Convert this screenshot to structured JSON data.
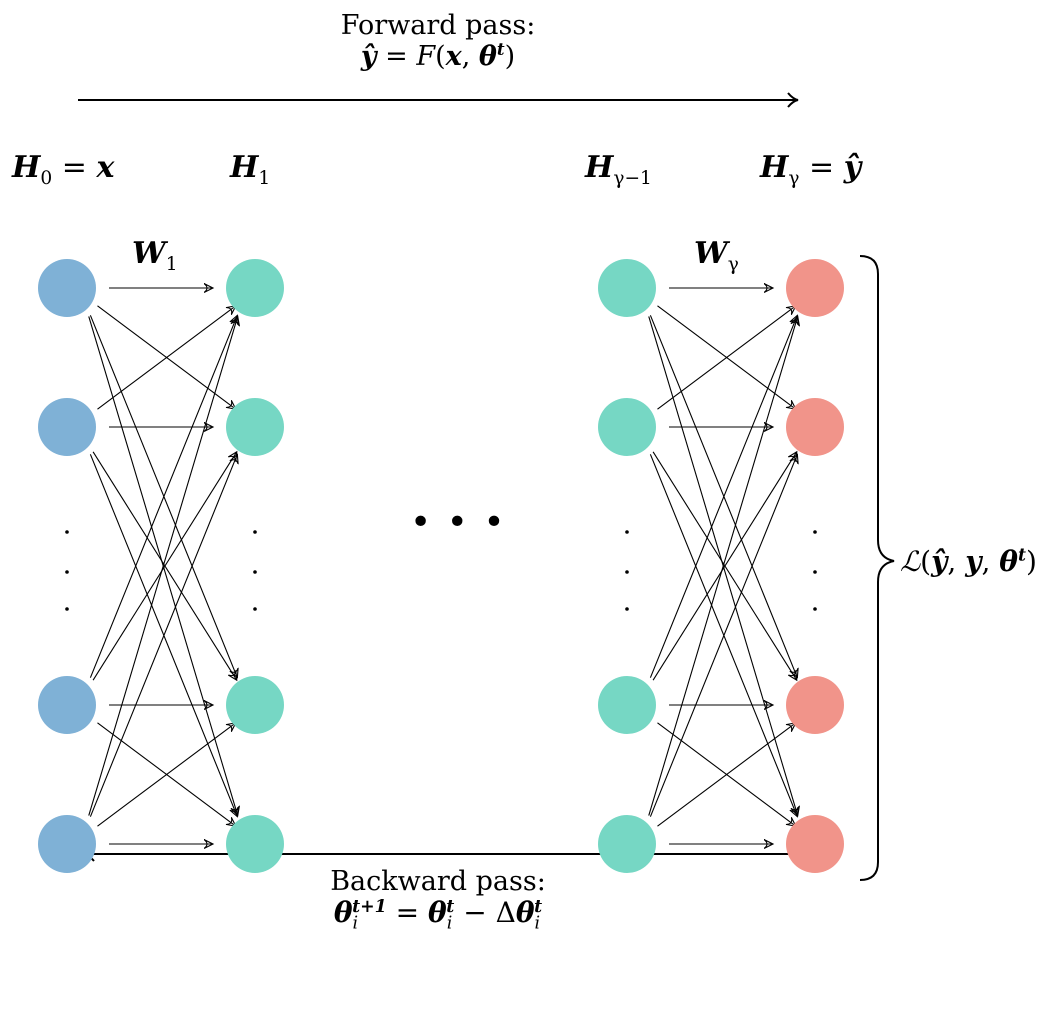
{
  "forward": {
    "title": "Forward pass:",
    "formula": {
      "yhat": "ŷ",
      "eq": "=",
      "func": "F",
      "x": "x",
      "theta": "θ",
      "t": "t"
    }
  },
  "backward": {
    "title": "Backward pass:",
    "formula": {
      "theta": "θ",
      "i": "i",
      "t1": "t+1",
      "t": "t",
      "eq": "=",
      "minus": "−",
      "delta": "Δ"
    }
  },
  "layers": {
    "h0": {
      "H": "H",
      "sub": "0",
      "eq": "=",
      "x": "x"
    },
    "h1": {
      "H": "H",
      "sub": "1"
    },
    "hgm1": {
      "H": "H",
      "sub": "γ−1"
    },
    "hg": {
      "H": "H",
      "sub": "γ",
      "eq": "=",
      "yhat": "ŷ"
    }
  },
  "weights": {
    "w1": {
      "W": "W",
      "sub": "1"
    },
    "wg": {
      "W": "W",
      "sub": "γ"
    }
  },
  "loss": {
    "L": "ℒ",
    "open": "(",
    "yhat": "ŷ",
    "c1": ",",
    "y": "y",
    "c2": ",",
    "theta": "θ",
    "t": "t",
    "close": ")"
  },
  "ellipsis": "• • •",
  "colors": {
    "input_node": "#7fb1d6",
    "hidden_node": "#76d7c4",
    "output_node": "#f1948a",
    "edge": "#000000"
  }
}
